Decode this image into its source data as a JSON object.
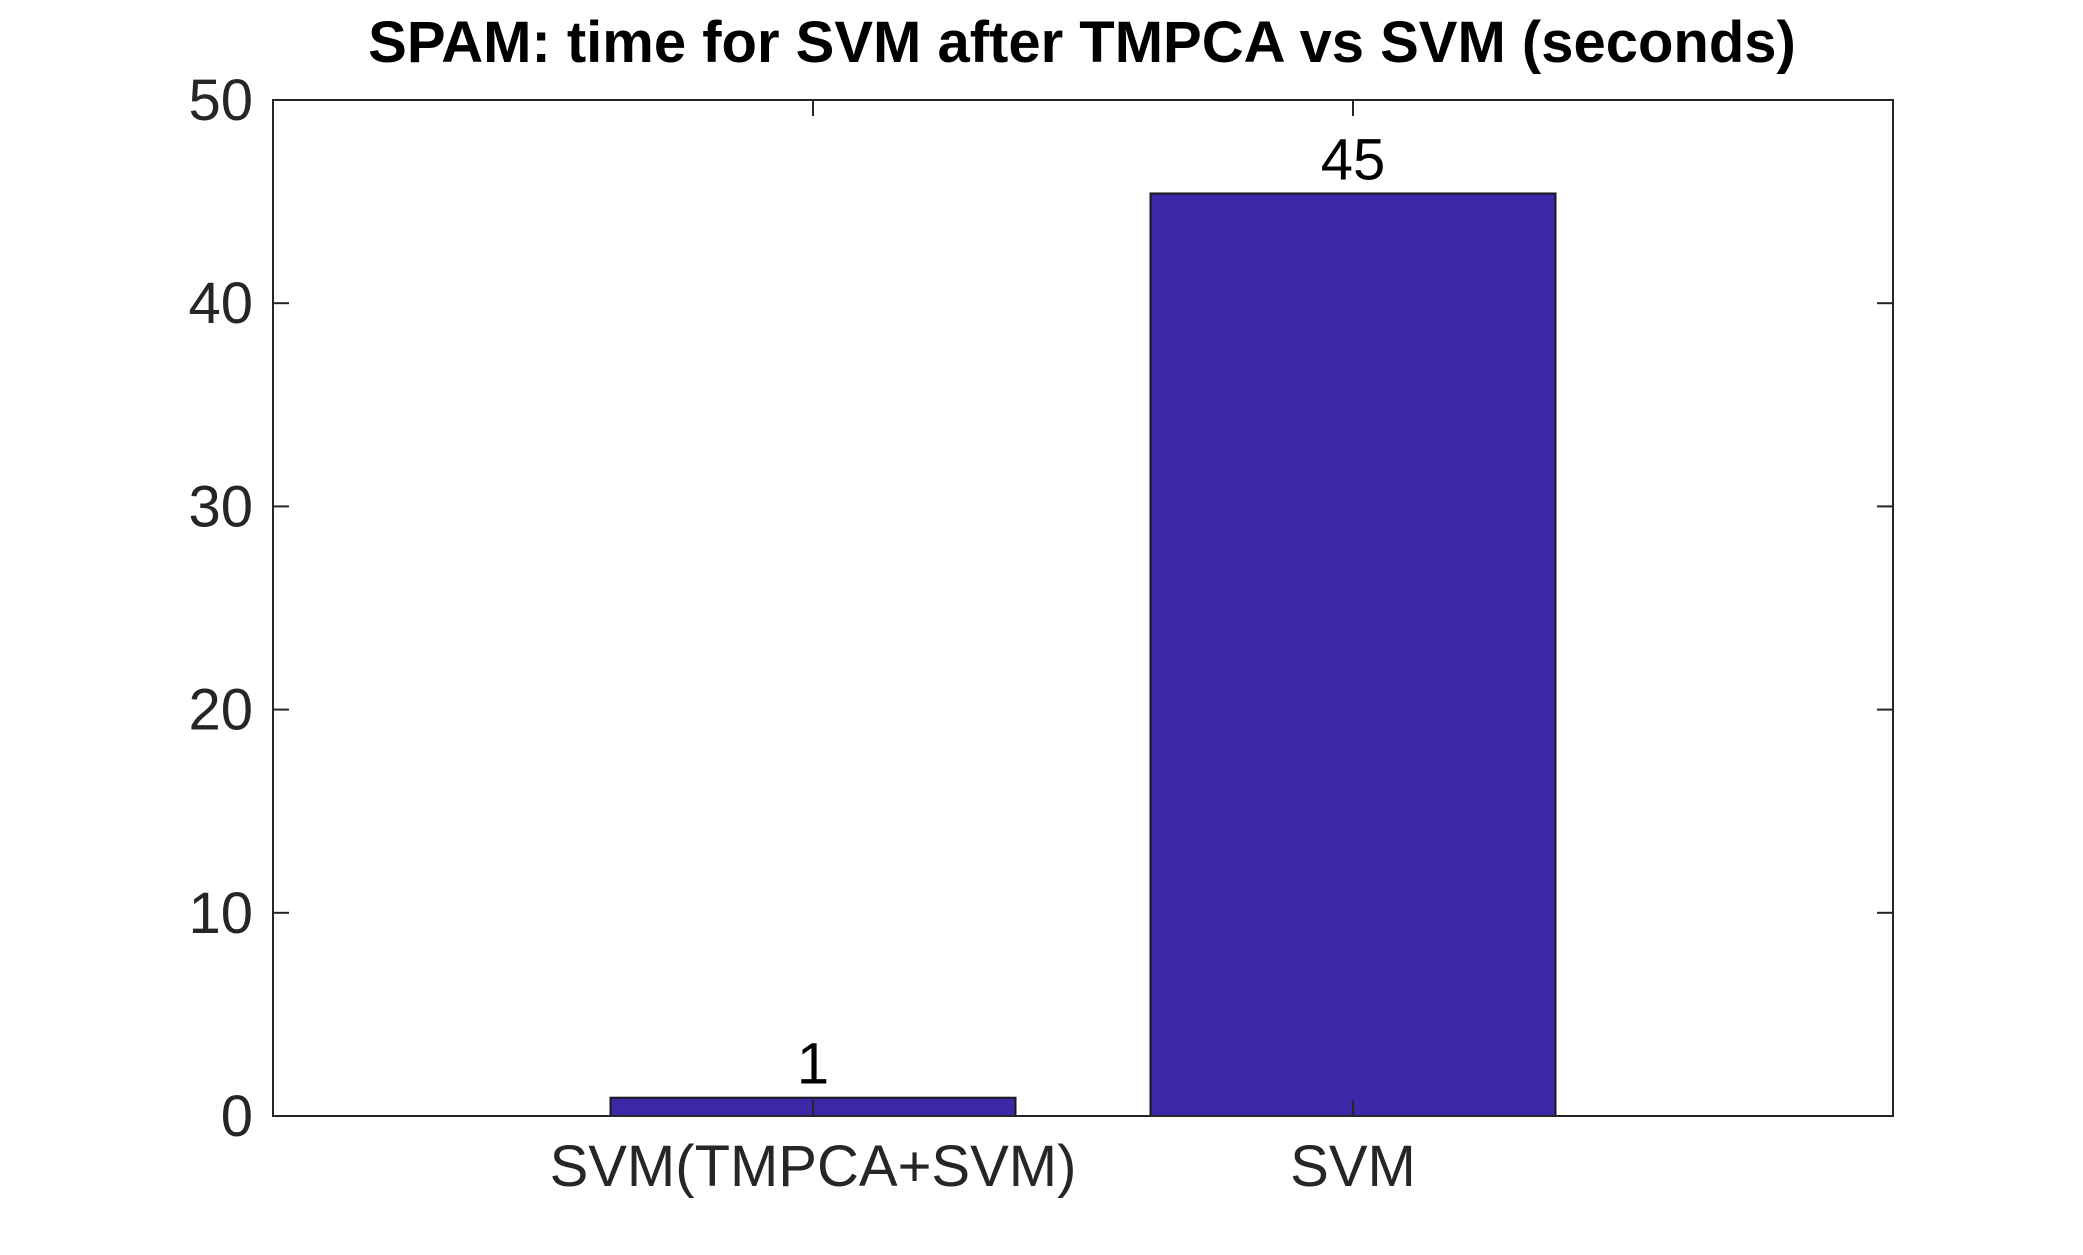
{
  "chart_data": {
    "type": "bar",
    "title": "SPAM: time for SVM after TMPCA vs SVM (seconds)",
    "categories": [
      "SVM(TMPCA+SVM)",
      "SVM"
    ],
    "values": [
      0.9,
      45.4
    ],
    "data_labels": [
      "1",
      "45"
    ],
    "ylim": [
      0,
      50
    ],
    "yticks": [
      0,
      10,
      20,
      30,
      40,
      50
    ],
    "xlabel": "",
    "ylabel": "",
    "grid": false,
    "legend": "none",
    "colors": {
      "bar_fill": "#3d26a8",
      "bar_stroke": "#1a1a1a",
      "axis": "#262626",
      "text": "#262626",
      "title": "#000000"
    }
  }
}
